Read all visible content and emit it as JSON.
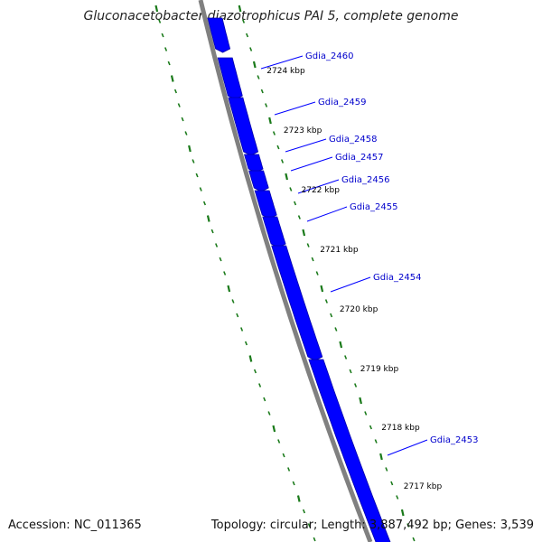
{
  "title": "Gluconacetobacter diazotrophicus PAI 5, complete genome",
  "footer": {
    "accession": "Accession: NC_011365",
    "summary": "Topology: circular; Length: 3,887,492 bp; Genes: 3,539"
  },
  "colors": {
    "gene_fill": "#0000ff",
    "backbone": "#808080",
    "tick": "#1a7a1a",
    "gene_label": "#0000cc",
    "kbp_label": "#000000"
  },
  "genes": [
    {
      "name": "Gdia_2460"
    },
    {
      "name": "Gdia_2459"
    },
    {
      "name": "Gdia_2458"
    },
    {
      "name": "Gdia_2457"
    },
    {
      "name": "Gdia_2456"
    },
    {
      "name": "Gdia_2455"
    },
    {
      "name": "Gdia_2454"
    },
    {
      "name": "Gdia_2453"
    }
  ],
  "kbp_labels": [
    "2724 kbp",
    "2723 kbp",
    "2722 kbp",
    "2721 kbp",
    "2720 kbp",
    "2719 kbp",
    "2718 kbp",
    "2717 kbp"
  ]
}
